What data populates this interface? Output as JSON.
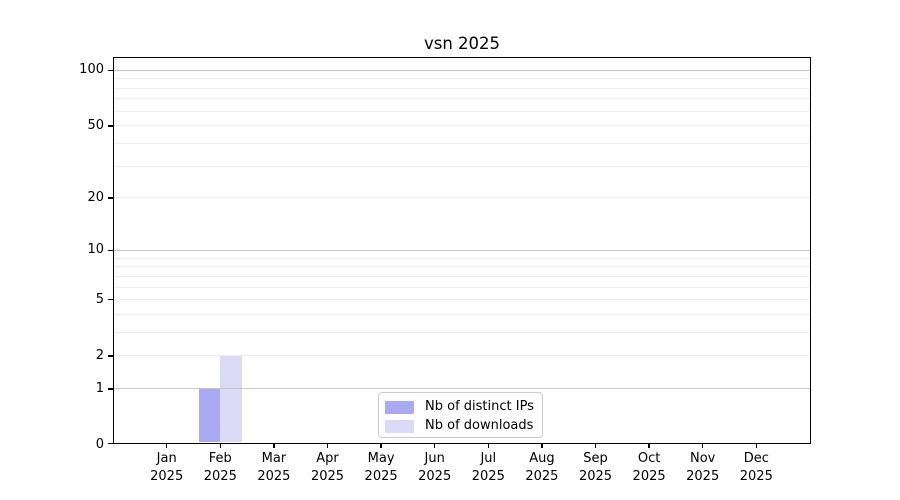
{
  "chart_data": {
    "type": "bar",
    "title": "vsn 2025",
    "x": [
      "Jan",
      "Feb",
      "Mar",
      "Apr",
      "May",
      "Jun",
      "Jul",
      "Aug",
      "Sep",
      "Oct",
      "Nov",
      "Dec"
    ],
    "x_year": "2025",
    "series": [
      {
        "name": "Nb of distinct IPs",
        "color": "#a9a9f4",
        "values": [
          0,
          1,
          0,
          0,
          0,
          0,
          0,
          0,
          0,
          0,
          0,
          0
        ]
      },
      {
        "name": "Nb of downloads",
        "color": "#dbdbf7",
        "values": [
          0,
          2,
          0,
          0,
          0,
          0,
          0,
          0,
          0,
          0,
          0,
          0
        ]
      }
    ],
    "y_ticks": [
      0,
      1,
      2,
      5,
      10,
      20,
      50,
      100
    ],
    "y_scale": "log10(value+1)",
    "ylim": [
      0,
      115
    ],
    "grid": true,
    "grid_major_values": [
      1,
      10,
      100
    ],
    "grid_minor_values": [
      2,
      3,
      4,
      5,
      6,
      7,
      8,
      9,
      20,
      30,
      40,
      50,
      60,
      70,
      80,
      90
    ],
    "legend": {
      "position": "inside-bottom-center"
    }
  },
  "colors": {
    "grid_major": "#c6c6c6",
    "grid_minor": "#ececec",
    "frame": "#000000",
    "text": "#000000",
    "legend_border": "#cccccc"
  }
}
